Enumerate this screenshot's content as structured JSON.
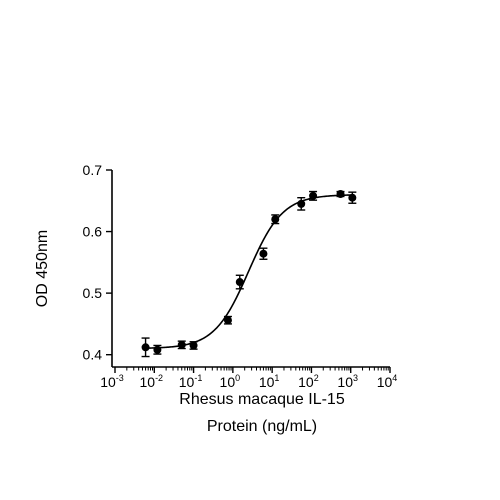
{
  "chart_data": {
    "type": "scatter",
    "title": "",
    "xlabel": [
      "Rhesus macaque IL-15",
      "Protein (ng/mL)"
    ],
    "ylabel": "OD 450nm",
    "x_scale": "log",
    "xlim": [
      0.001,
      10000
    ],
    "ylim": [
      0.38,
      0.7
    ],
    "x_ticks": [
      {
        "value": 0.001,
        "base": "10",
        "exp": "-3"
      },
      {
        "value": 0.01,
        "base": "10",
        "exp": "-2"
      },
      {
        "value": 0.1,
        "base": "10",
        "exp": "-1"
      },
      {
        "value": 1,
        "base": "10",
        "exp": "0"
      },
      {
        "value": 10,
        "base": "10",
        "exp": "1"
      },
      {
        "value": 100,
        "base": "10",
        "exp": "2"
      },
      {
        "value": 1000,
        "base": "10",
        "exp": "3"
      },
      {
        "value": 10000,
        "base": "10",
        "exp": "4"
      }
    ],
    "y_ticks": [
      {
        "value": 0.4,
        "label": "0.4"
      },
      {
        "value": 0.5,
        "label": "0.5"
      },
      {
        "value": 0.6,
        "label": "0.6"
      },
      {
        "value": 0.7,
        "label": "0.7"
      }
    ],
    "grid": false,
    "legend": "none",
    "marker_color": "#000000",
    "series": [
      {
        "x": [
          0.006,
          0.012,
          0.05,
          0.1,
          0.75,
          1.5,
          6,
          12,
          55,
          110,
          550,
          1100
        ],
        "y": [
          0.412,
          0.408,
          0.416,
          0.415,
          0.456,
          0.518,
          0.564,
          0.62,
          0.645,
          0.658,
          0.661,
          0.655
        ],
        "err": [
          0.015,
          0.007,
          0.006,
          0.006,
          0.006,
          0.011,
          0.009,
          0.007,
          0.01,
          0.007,
          0.004,
          0.009
        ]
      }
    ],
    "fit": {
      "model": "4PL",
      "bottom": 0.41,
      "top": 0.66,
      "ec50": 2.5,
      "hill": 1.0
    }
  }
}
